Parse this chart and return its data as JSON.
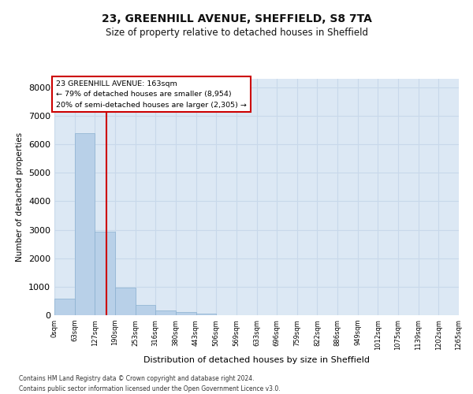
{
  "title1": "23, GREENHILL AVENUE, SHEFFIELD, S8 7TA",
  "title2": "Size of property relative to detached houses in Sheffield",
  "xlabel": "Distribution of detached houses by size in Sheffield",
  "ylabel": "Number of detached properties",
  "bar_values": [
    590,
    6400,
    2920,
    970,
    360,
    160,
    100,
    65,
    5,
    3,
    2,
    1,
    1,
    0,
    0,
    0,
    0,
    0,
    0
  ],
  "bar_labels": [
    "0sqm",
    "63sqm",
    "127sqm",
    "190sqm",
    "253sqm",
    "316sqm",
    "380sqm",
    "443sqm",
    "506sqm",
    "569sqm",
    "633sqm",
    "696sqm",
    "759sqm",
    "822sqm",
    "886sqm",
    "949sqm",
    "1012sqm",
    "1075sqm",
    "1139sqm",
    "1202sqm",
    "1265sqm"
  ],
  "bar_color": "#b8d0e8",
  "bar_edge_color": "#8ab0d0",
  "grid_color": "#c8d8ea",
  "background_color": "#dce8f4",
  "annotation_text": "23 GREENHILL AVENUE: 163sqm\n← 79% of detached houses are smaller (8,954)\n20% of semi-detached houses are larger (2,305) →",
  "annotation_box_color": "#cc0000",
  "ylim": [
    0,
    8300
  ],
  "yticks": [
    0,
    1000,
    2000,
    3000,
    4000,
    5000,
    6000,
    7000,
    8000
  ],
  "footer_line1": "Contains HM Land Registry data © Crown copyright and database right 2024.",
  "footer_line2": "Contains public sector information licensed under the Open Government Licence v3.0."
}
